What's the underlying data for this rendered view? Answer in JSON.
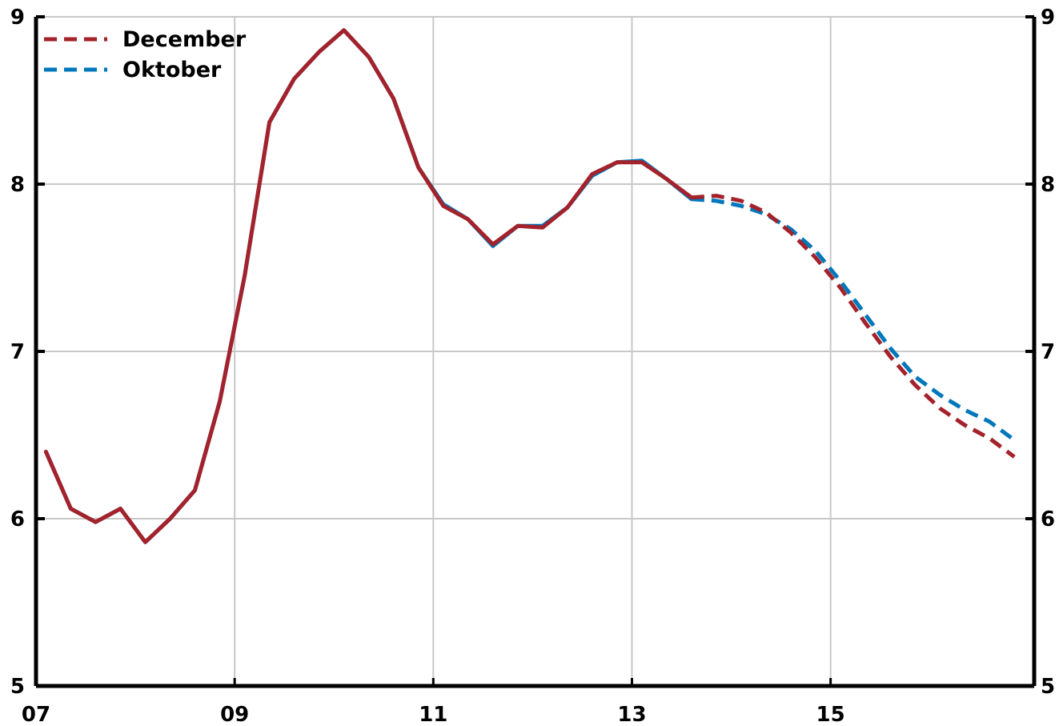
{
  "chart_data": {
    "type": "line",
    "x_tick_labels": [
      "07",
      "09",
      "11",
      "13",
      "15"
    ],
    "x_tick_values": [
      2007,
      2009,
      2011,
      2013,
      2015
    ],
    "xlim": [
      2007,
      2017.05
    ],
    "ylim": [
      5,
      9
    ],
    "y_ticks": [
      5,
      6,
      7,
      8,
      9
    ],
    "grid": true,
    "legend_position": "top-left",
    "legend": [
      {
        "label": "December",
        "color": "#a3222b",
        "dash": "dashed"
      },
      {
        "label": "Oktober",
        "color": "#0077bb",
        "dash": "dashed"
      }
    ],
    "series": [
      {
        "name": "Oktober",
        "color": "#0077bb",
        "points": [
          [
            2007.1,
            6.4
          ],
          [
            2007.35,
            6.06
          ],
          [
            2007.6,
            5.98
          ],
          [
            2007.85,
            6.06
          ],
          [
            2008.1,
            5.86
          ],
          [
            2008.35,
            6.0
          ],
          [
            2008.6,
            6.17
          ],
          [
            2008.85,
            6.7
          ],
          [
            2009.1,
            7.45
          ],
          [
            2009.35,
            8.37
          ],
          [
            2009.6,
            8.63
          ],
          [
            2009.85,
            8.79
          ],
          [
            2010.1,
            8.92
          ],
          [
            2010.35,
            8.76
          ],
          [
            2010.6,
            8.51
          ],
          [
            2010.85,
            8.1
          ],
          [
            2011.1,
            7.88
          ],
          [
            2011.35,
            7.79
          ],
          [
            2011.6,
            7.63
          ],
          [
            2011.85,
            7.75
          ],
          [
            2012.1,
            7.75
          ],
          [
            2012.35,
            7.86
          ],
          [
            2012.6,
            8.05
          ],
          [
            2012.85,
            8.13
          ],
          [
            2013.1,
            8.14
          ],
          [
            2013.35,
            8.03
          ],
          [
            2013.6,
            7.91
          ]
        ],
        "forecast": [
          [
            2013.6,
            7.91
          ],
          [
            2013.85,
            7.9
          ],
          [
            2014.1,
            7.87
          ],
          [
            2014.35,
            7.82
          ],
          [
            2014.6,
            7.73
          ],
          [
            2014.85,
            7.6
          ],
          [
            2015.1,
            7.42
          ],
          [
            2015.35,
            7.22
          ],
          [
            2015.6,
            7.02
          ],
          [
            2015.85,
            6.85
          ],
          [
            2016.1,
            6.74
          ],
          [
            2016.35,
            6.65
          ],
          [
            2016.6,
            6.58
          ],
          [
            2016.85,
            6.47
          ]
        ]
      },
      {
        "name": "December",
        "color": "#a3222b",
        "points": [
          [
            2007.1,
            6.4
          ],
          [
            2007.35,
            6.06
          ],
          [
            2007.6,
            5.98
          ],
          [
            2007.85,
            6.06
          ],
          [
            2008.1,
            5.86
          ],
          [
            2008.35,
            6.0
          ],
          [
            2008.6,
            6.17
          ],
          [
            2008.85,
            6.7
          ],
          [
            2009.1,
            7.45
          ],
          [
            2009.35,
            8.37
          ],
          [
            2009.6,
            8.63
          ],
          [
            2009.85,
            8.79
          ],
          [
            2010.1,
            8.92
          ],
          [
            2010.35,
            8.76
          ],
          [
            2010.6,
            8.51
          ],
          [
            2010.85,
            8.1
          ],
          [
            2011.1,
            7.87
          ],
          [
            2011.35,
            7.79
          ],
          [
            2011.6,
            7.64
          ],
          [
            2011.85,
            7.75
          ],
          [
            2012.1,
            7.74
          ],
          [
            2012.35,
            7.86
          ],
          [
            2012.6,
            8.06
          ],
          [
            2012.85,
            8.13
          ],
          [
            2013.1,
            8.13
          ],
          [
            2013.35,
            8.03
          ],
          [
            2013.6,
            7.92
          ]
        ],
        "forecast": [
          [
            2013.6,
            7.92
          ],
          [
            2013.85,
            7.93
          ],
          [
            2014.1,
            7.9
          ],
          [
            2014.35,
            7.83
          ],
          [
            2014.6,
            7.71
          ],
          [
            2014.85,
            7.56
          ],
          [
            2015.1,
            7.38
          ],
          [
            2015.35,
            7.17
          ],
          [
            2015.6,
            6.97
          ],
          [
            2015.85,
            6.8
          ],
          [
            2016.1,
            6.66
          ],
          [
            2016.35,
            6.56
          ],
          [
            2016.6,
            6.48
          ],
          [
            2016.85,
            6.37
          ]
        ]
      }
    ]
  }
}
